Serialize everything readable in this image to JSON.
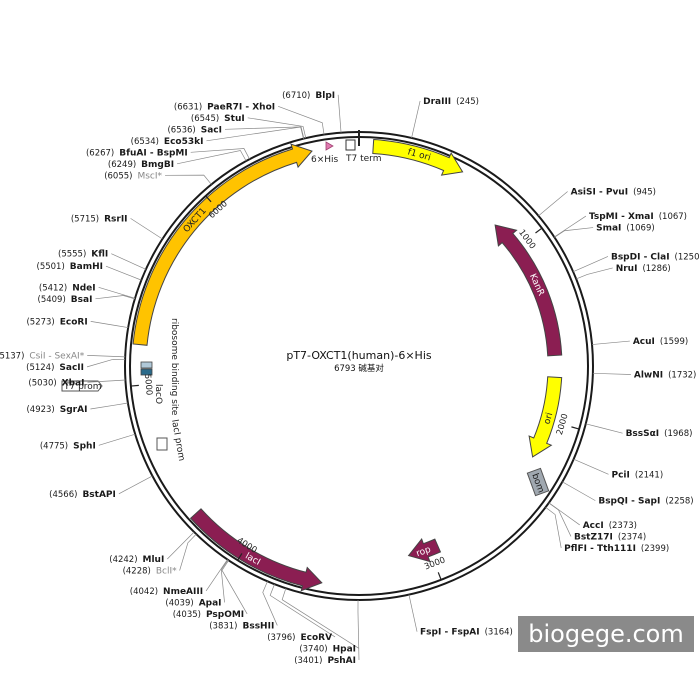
{
  "plasmid": {
    "name": "pT7-OXCT1(human)-6×His",
    "length_label": "6793 碱基对",
    "total_bp": 6793
  },
  "sites": [
    {
      "name": "BlpI",
      "pos": "(6710)",
      "bp": 6710,
      "gray": false
    },
    {
      "name": "DraIII",
      "pos": "(245)",
      "bp": 245,
      "gray": false
    },
    {
      "name": "AsiSI - PvuI",
      "pos": "(945)",
      "bp": 945,
      "gray": false
    },
    {
      "name": "TspMI - XmaI",
      "pos": "(1067)",
      "bp": 1067,
      "gray": false
    },
    {
      "name": "SmaI",
      "pos": "(1069)",
      "bp": 1069,
      "gray": false
    },
    {
      "name": "BspDI - ClaI",
      "pos": "(1250)",
      "bp": 1250,
      "gray": false
    },
    {
      "name": "NruI",
      "pos": "(1286)",
      "bp": 1286,
      "gray": false
    },
    {
      "name": "AcuI",
      "pos": "(1599)",
      "bp": 1599,
      "gray": false
    },
    {
      "name": "AlwNI",
      "pos": "(1732)",
      "bp": 1732,
      "gray": false
    },
    {
      "name": "BssSαI",
      "pos": "(1968)",
      "bp": 1968,
      "gray": false
    },
    {
      "name": "PciI",
      "pos": "(2141)",
      "bp": 2141,
      "gray": false
    },
    {
      "name": "BspQI - SapI",
      "pos": "(2258)",
      "bp": 2258,
      "gray": false
    },
    {
      "name": "AccI",
      "pos": "(2373)",
      "bp": 2373,
      "gray": false
    },
    {
      "name": "BstZ17I",
      "pos": "(2374)",
      "bp": 2374,
      "gray": false
    },
    {
      "name": "PflFI - Tth111I",
      "pos": "(2399)",
      "bp": 2399,
      "gray": false
    },
    {
      "name": "FspI - FspAI",
      "pos": "(3164)",
      "bp": 3164,
      "gray": false
    },
    {
      "name": "PshAI",
      "pos": "(3401)",
      "bp": 3401,
      "gray": false
    },
    {
      "name": "HpaI",
      "pos": "(3740)",
      "bp": 3740,
      "gray": false
    },
    {
      "name": "EcoRV",
      "pos": "(3796)",
      "bp": 3796,
      "gray": false
    },
    {
      "name": "BssHII",
      "pos": "(3831)",
      "bp": 3831,
      "gray": false
    },
    {
      "name": "PspOMI",
      "pos": "(4035)",
      "bp": 4035,
      "gray": false
    },
    {
      "name": "ApaI",
      "pos": "(4039)",
      "bp": 4039,
      "gray": false
    },
    {
      "name": "NmeAIII",
      "pos": "(4042)",
      "bp": 4042,
      "gray": false
    },
    {
      "name": "BclI*",
      "pos": "(4228)",
      "bp": 4228,
      "gray": true
    },
    {
      "name": "MluI",
      "pos": "(4242)",
      "bp": 4242,
      "gray": false
    },
    {
      "name": "BstAPI",
      "pos": "(4566)",
      "bp": 4566,
      "gray": false
    },
    {
      "name": "SphI",
      "pos": "(4775)",
      "bp": 4775,
      "gray": false
    },
    {
      "name": "SgrAI",
      "pos": "(4923)",
      "bp": 4923,
      "gray": false
    },
    {
      "name": "XbaI",
      "pos": "(5030)",
      "bp": 5030,
      "gray": false
    },
    {
      "name": "SacII",
      "pos": "(5124)",
      "bp": 5124,
      "gray": false
    },
    {
      "name": "CsiI - SexAI*",
      "pos": "(5137)",
      "bp": 5137,
      "gray": true
    },
    {
      "name": "EcoRI",
      "pos": "(5273)",
      "bp": 5273,
      "gray": false
    },
    {
      "name": "BsaI",
      "pos": "(5409)",
      "bp": 5409,
      "gray": false
    },
    {
      "name": "NdeI",
      "pos": "(5412)",
      "bp": 5412,
      "gray": false
    },
    {
      "name": "BamHI",
      "pos": "(5501)",
      "bp": 5501,
      "gray": false
    },
    {
      "name": "KflI",
      "pos": "(5555)",
      "bp": 5555,
      "gray": false
    },
    {
      "name": "RsrII",
      "pos": "(5715)",
      "bp": 5715,
      "gray": false
    },
    {
      "name": "MscI*",
      "pos": "(6055)",
      "bp": 6055,
      "gray": true
    },
    {
      "name": "BmgBI",
      "pos": "(6249)",
      "bp": 6249,
      "gray": false
    },
    {
      "name": "BfuAI - BspMI",
      "pos": "(6267)",
      "bp": 6267,
      "gray": false
    },
    {
      "name": "Eco53kI",
      "pos": "(6534)",
      "bp": 6534,
      "gray": false
    },
    {
      "name": "SacI",
      "pos": "(6536)",
      "bp": 6536,
      "gray": false
    },
    {
      "name": "StuI",
      "pos": "(6545)",
      "bp": 6545,
      "gray": false
    },
    {
      "name": "PaeR7I - XhoI",
      "pos": "(6631)",
      "bp": 6631,
      "gray": false
    }
  ],
  "features": [
    {
      "name": "f1 ori",
      "start": 70,
      "end": 530,
      "dir": "cw",
      "color": "#ffff00",
      "ring": "outer"
    },
    {
      "name": "KanR",
      "start": 1640,
      "end": 830,
      "dir": "ccw",
      "color": "#8b1e52",
      "ring": "inner"
    },
    {
      "name": "ori",
      "start": 1760,
      "end": 2220,
      "dir": "cw",
      "color": "#ffff00",
      "ring": "inner"
    },
    {
      "name": "rop",
      "start": 2950,
      "end": 3120,
      "dir": "cw",
      "color": "#8b1e52",
      "ring": "inner"
    },
    {
      "name": "lacI",
      "start": 4300,
      "end": 3580,
      "dir": "ccw",
      "color": "#8b1e52",
      "ring": "outer"
    },
    {
      "name": "OXCT1",
      "start": 5200,
      "end": 6560,
      "dir": "cw",
      "color": "#ffc300",
      "ring": "outer"
    }
  ],
  "feature_labels": {
    "his": "6×His",
    "t7term": "T7 term",
    "bom": "bom",
    "rbs": "ribosome binding site",
    "laco": "lacO",
    "t7prom": "T7 prom",
    "laciprom": "lacI prom"
  },
  "ticks": [
    {
      "label": "1000",
      "bp": 1000
    },
    {
      "label": "2000",
      "bp": 2000
    },
    {
      "label": "3000",
      "bp": 3000
    },
    {
      "label": "4000",
      "bp": 4000
    },
    {
      "label": "5000",
      "bp": 5000
    },
    {
      "label": "6000",
      "bp": 6000
    }
  ],
  "colors": {
    "backbone": "#1a1a1a",
    "yellow": "#ffff00",
    "orange": "#ffc300",
    "purple": "#8b1e52",
    "gray_box": "#a0a8b0"
  },
  "watermark": "biogege.com"
}
